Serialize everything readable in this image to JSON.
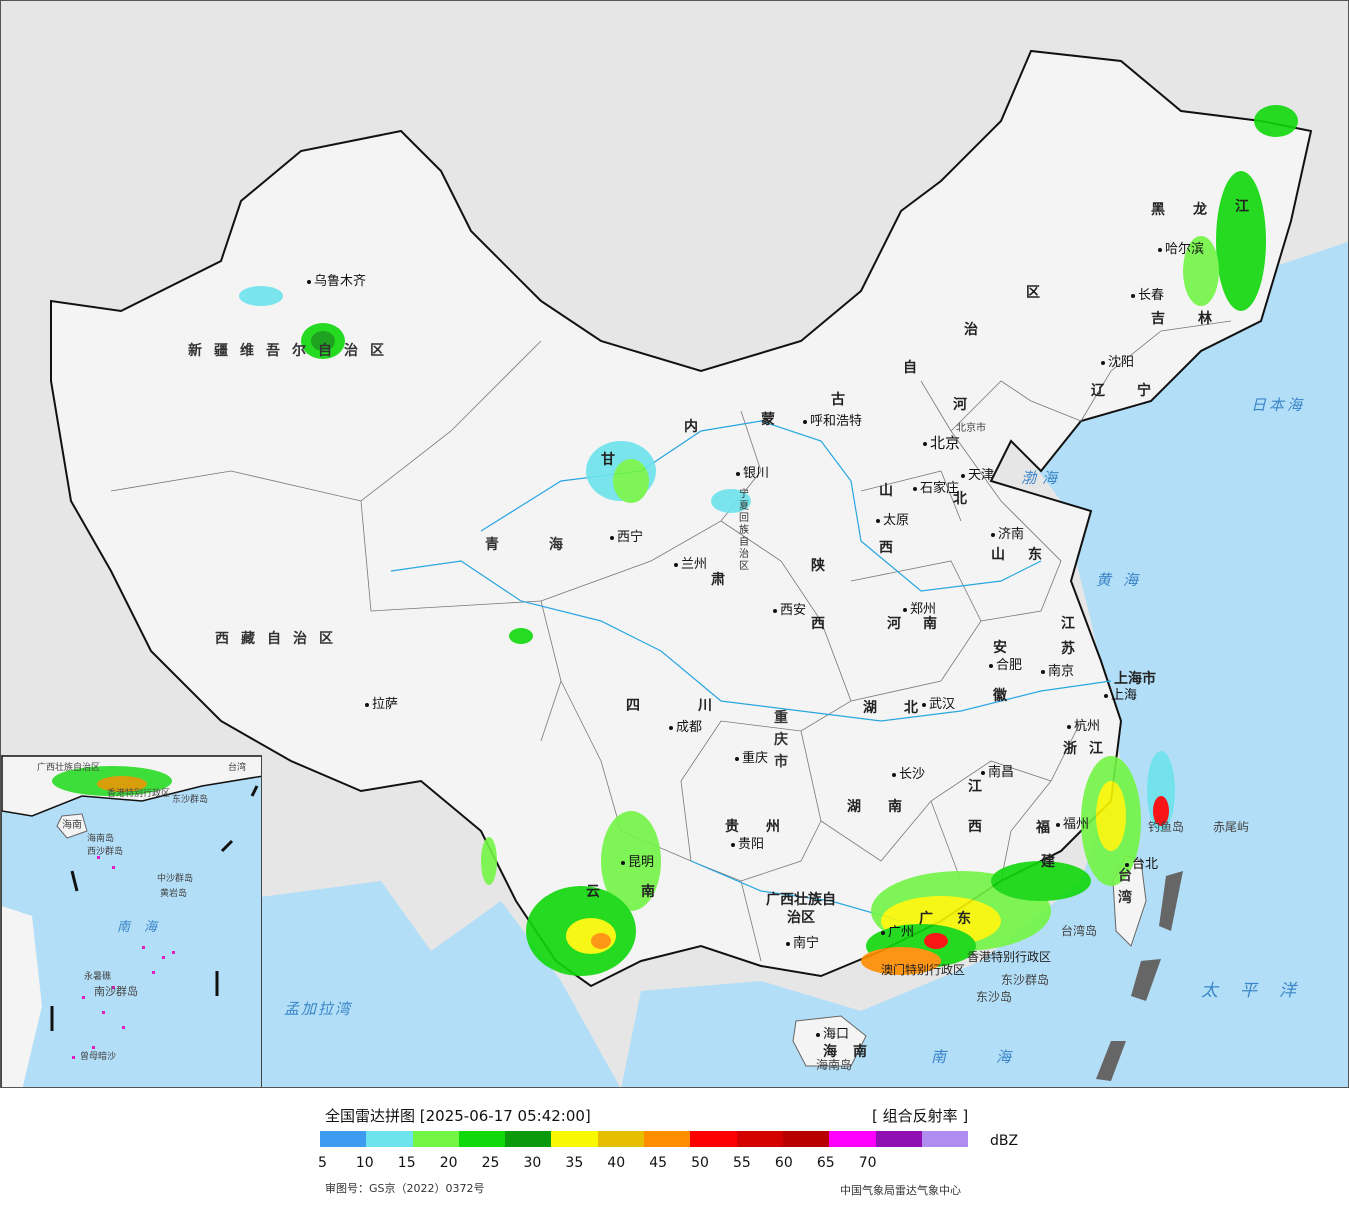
{
  "legend": {
    "title": "全国雷达拼图 [2025-06-17 05:42:00]",
    "product": "[ 组合反射率 ]",
    "unit": "dBZ",
    "ticks": [
      "5",
      "10",
      "15",
      "20",
      "25",
      "30",
      "35",
      "40",
      "45",
      "50",
      "55",
      "60",
      "65",
      "70"
    ],
    "colors": [
      "#3d9bf0",
      "#6de3ed",
      "#73f545",
      "#10d80b",
      "#0a9a0b",
      "#f8f800",
      "#e6c000",
      "#ff8d00",
      "#ff0000",
      "#d40000",
      "#b80000",
      "#ff00ff",
      "#9010b4",
      "#b08cf0"
    ],
    "approval": "审图号：GS京（2022）0372号",
    "source": "中国气象局雷达气象中心"
  },
  "map": {
    "provinces": [
      "新疆维吾尔自治区",
      "西藏自治区",
      "青海",
      "甘",
      "肃",
      "内",
      "蒙",
      "古",
      "自",
      "治",
      "区",
      "四",
      "川",
      "云",
      "南",
      "贵",
      "州",
      "湖",
      "北",
      "湖",
      "南",
      "江",
      "西",
      "浙",
      "江",
      "安",
      "徽",
      "江",
      "苏",
      "山",
      "东",
      "河",
      "北",
      "河",
      "南",
      "陕",
      "西",
      "山",
      "西",
      "辽",
      "宁",
      "黑",
      "龙",
      "江",
      "吉",
      "林",
      "广",
      "东",
      "福",
      "建",
      "广西壮族自治区",
      "宁夏回族自治区",
      "重庆市",
      "上海市",
      "台湾",
      "海",
      "南",
      "香港特别行政区",
      "澳门特别行政区"
    ],
    "cities": [
      "乌鲁木齐",
      "拉萨",
      "西宁",
      "兰州",
      "银川",
      "呼和浩特",
      "北京",
      "天津",
      "石家庄",
      "太原",
      "济南",
      "郑州",
      "西安",
      "合肥",
      "南京",
      "上海",
      "杭州",
      "武汉",
      "长沙",
      "南昌",
      "福州",
      "台北",
      "成都",
      "重庆",
      "贵阳",
      "昆明",
      "南宁",
      "广州",
      "海口",
      "沈阳",
      "长春",
      "哈尔滨"
    ],
    "seas": [
      "渤海",
      "黄海",
      "日本海",
      "太平洋",
      "南海",
      "孟加拉湾"
    ],
    "islands": [
      "钓鱼岛",
      "赤尾屿",
      "台湾岛",
      "东沙群岛",
      "东沙岛",
      "海南岛"
    ],
    "beijing_label": "北京市",
    "tianjin_label": "天津"
  },
  "inset": {
    "labels": [
      "广西壮族自治区",
      "海南",
      "香港特别行政区",
      "东沙群岛",
      "海南岛",
      "西沙群岛",
      "中沙群岛",
      "黄岩岛",
      "南海",
      "南沙群岛",
      "永暑礁",
      "曾母暗沙",
      "台湾"
    ]
  }
}
